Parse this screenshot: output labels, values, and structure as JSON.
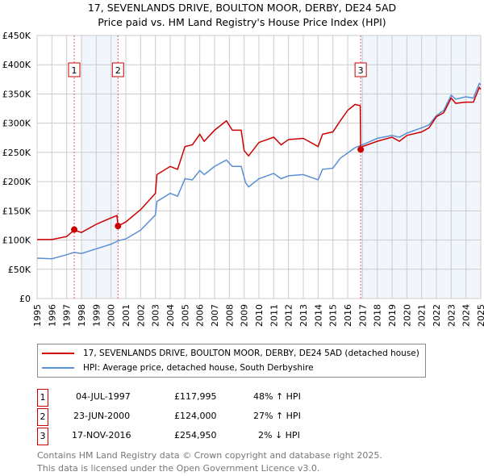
{
  "title": "17, SEVENLANDS DRIVE, BOULTON MOOR, DERBY, DE24 5AD",
  "subtitle": "Price paid vs. HM Land Registry's House Price Index (HPI)",
  "chart_data": {
    "type": "line",
    "title": "17, SEVENLANDS DRIVE, BOULTON MOOR, DERBY, DE24 5AD",
    "subtitle": "Price paid vs. HM Land Registry's House Price Index (HPI)",
    "xlim": [
      1995,
      2025
    ],
    "ylim": [
      0,
      450000
    ],
    "y_ticks": [
      0,
      50000,
      100000,
      150000,
      200000,
      250000,
      300000,
      350000,
      400000,
      450000
    ],
    "y_tick_labels": [
      "£0",
      "£50K",
      "£100K",
      "£150K",
      "£200K",
      "£250K",
      "£300K",
      "£350K",
      "£400K",
      "£450K"
    ],
    "x_ticks": [
      "1995",
      "1996",
      "1997",
      "1998",
      "1999",
      "2000",
      "2001",
      "2002",
      "2003",
      "2004",
      "2005",
      "2006",
      "2007",
      "2008",
      "2009",
      "2010",
      "2011",
      "2012",
      "2013",
      "2014",
      "2015",
      "2016",
      "2017",
      "2018",
      "2019",
      "2020",
      "2021",
      "2022",
      "2023",
      "2024",
      "2025"
    ],
    "grid": true,
    "shaded_ranges": [
      [
        1997.96,
        2000.47
      ],
      [
        2016.88,
        2025
      ]
    ],
    "series": [
      {
        "name": "17, SEVENLANDS DRIVE, BOULTON MOOR, DERBY, DE24 5AD (detached house)",
        "color": "#cc0000",
        "x": [
          1995,
          1996,
          1997,
          1997.5,
          1998,
          1999,
          2000,
          2000.4,
          2000.47,
          2001,
          2002,
          2003,
          2003.1,
          2004,
          2004.5,
          2005,
          2005.5,
          2006,
          2006.3,
          2007,
          2007.8,
          2008.2,
          2008.8,
          2009,
          2009.3,
          2010,
          2011,
          2011.5,
          2012,
          2013,
          2014,
          2014.3,
          2015,
          2015.5,
          2016,
          2016.5,
          2016.85,
          2016.88,
          2017,
          2018,
          2019,
          2019.5,
          2020,
          2021,
          2021.5,
          2022,
          2022.5,
          2023,
          2023.3,
          2024,
          2024.5,
          2024.9,
          2025
        ],
        "y": [
          101000,
          101000,
          106000,
          117000,
          113000,
          127000,
          138000,
          142000,
          124000,
          131000,
          152000,
          180000,
          212000,
          226000,
          221000,
          260000,
          263000,
          281000,
          269000,
          288000,
          304000,
          288000,
          288000,
          253000,
          244000,
          267000,
          276000,
          263000,
          272000,
          274000,
          260000,
          281000,
          285000,
          304000,
          322000,
          332000,
          330000,
          255000,
          260000,
          269000,
          276000,
          269000,
          279000,
          285000,
          292000,
          311000,
          318000,
          343000,
          334000,
          336000,
          336000,
          361000,
          358000
        ]
      },
      {
        "name": "HPI: Average price, detached house, South Derbyshire",
        "color": "#5b8fd4",
        "x": [
          1995,
          1996,
          1997,
          1997.5,
          1998,
          1999,
          2000,
          2000.5,
          2001,
          2002,
          2003,
          2003.1,
          2004,
          2004.5,
          2005,
          2005.5,
          2006,
          2006.3,
          2007,
          2007.8,
          2008.2,
          2008.8,
          2009.1,
          2009.3,
          2010,
          2011,
          2011.5,
          2012,
          2013,
          2014,
          2014.3,
          2015,
          2015.5,
          2016,
          2016.5,
          2017,
          2018,
          2019,
          2019.5,
          2020,
          2021,
          2021.5,
          2022,
          2022.5,
          2023,
          2023.3,
          2024,
          2024.5,
          2024.9,
          2025
        ],
        "y": [
          69000,
          68000,
          75000,
          79000,
          77000,
          85000,
          93000,
          99000,
          102000,
          117000,
          143000,
          166000,
          180000,
          175000,
          205000,
          203000,
          219000,
          212000,
          226000,
          237000,
          226000,
          226000,
          198000,
          191000,
          205000,
          214000,
          205000,
          210000,
          212000,
          203000,
          221000,
          223000,
          240000,
          249000,
          258000,
          263000,
          274000,
          279000,
          276000,
          283000,
          292000,
          297000,
          313000,
          322000,
          348000,
          341000,
          345000,
          343000,
          368000,
          366000
        ]
      }
    ],
    "sales": [
      {
        "label": "1",
        "x": 1997.51,
        "y": 117995
      },
      {
        "label": "2",
        "x": 2000.47,
        "y": 124000
      },
      {
        "label": "3",
        "x": 2016.88,
        "y": 254950
      }
    ]
  },
  "legend": {
    "property": "17, SEVENLANDS DRIVE, BOULTON MOOR, DERBY, DE24 5AD (detached house)",
    "hpi": "HPI: Average price, detached house, South Derbyshire"
  },
  "transactions": [
    {
      "num": "1",
      "date": "04-JUL-1997",
      "price": "£117,995",
      "hpi": "48% ↑ HPI"
    },
    {
      "num": "2",
      "date": "23-JUN-2000",
      "price": "£124,000",
      "hpi": "27% ↑ HPI"
    },
    {
      "num": "3",
      "date": "17-NOV-2016",
      "price": "£254,950",
      "hpi": "2% ↓ HPI"
    }
  ],
  "footer": {
    "line1": "Contains HM Land Registry data © Crown copyright and database right 2025.",
    "line2": "This data is licensed under the Open Government Licence v3.0."
  }
}
